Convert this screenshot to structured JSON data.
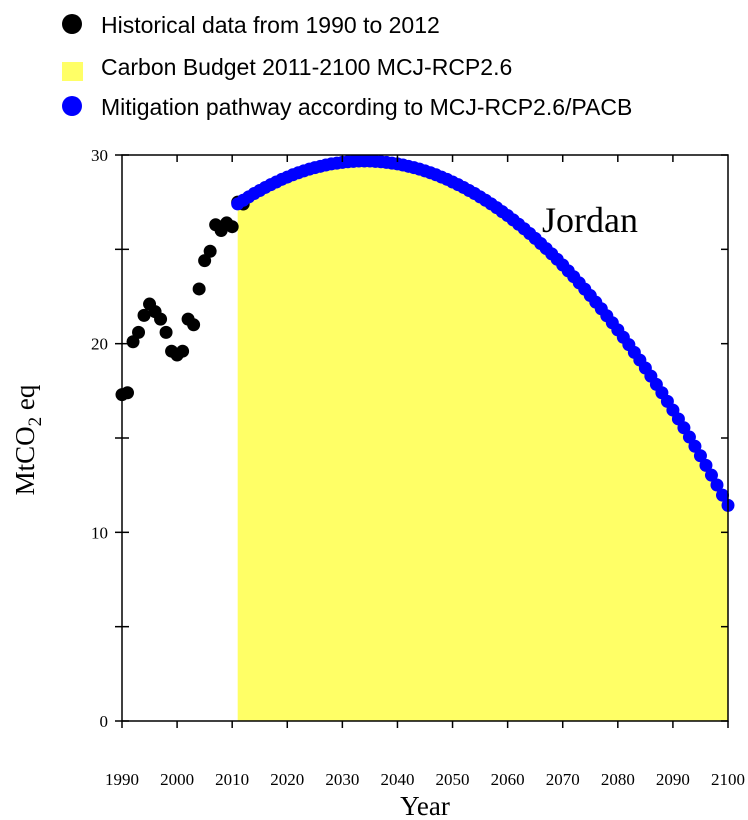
{
  "chart_data": {
    "type": "scatter",
    "annotation": "Jordan",
    "xlabel": "Year",
    "ylabel": {
      "main": "MtCO",
      "sub": "2",
      "suffix": " eq"
    },
    "xlim": [
      1990,
      2100
    ],
    "ylim": [
      0,
      30
    ],
    "xticks": [
      1990,
      2000,
      2010,
      2020,
      2030,
      2040,
      2050,
      2060,
      2070,
      2080,
      2090,
      2100
    ],
    "yticks": [
      0,
      10,
      20,
      30
    ],
    "grid": false,
    "legend_position": "top",
    "legend": [
      {
        "label": "Historical data from 1990 to 2012",
        "marker": "circle",
        "color": "#000000"
      },
      {
        "label": "Carbon Budget 2011-2100 MCJ-RCP2.6",
        "marker": "square",
        "color": "#ffff66"
      },
      {
        "label": "Mitigation pathway according to MCJ-RCP2.6/PACB",
        "marker": "circle",
        "color": "#0000ff"
      }
    ],
    "series": [
      {
        "name": "Historical data from 1990 to 2012",
        "type": "scatter",
        "color": "#000000",
        "x": [
          1990,
          1991,
          1992,
          1993,
          1994,
          1995,
          1996,
          1997,
          1998,
          1999,
          2000,
          2001,
          2002,
          2003,
          2004,
          2005,
          2006,
          2007,
          2008,
          2009,
          2010,
          2011,
          2012
        ],
        "y": [
          17.3,
          17.4,
          20.1,
          20.6,
          21.5,
          22.1,
          21.7,
          21.3,
          20.6,
          19.6,
          19.4,
          19.6,
          21.3,
          21.0,
          22.9,
          24.4,
          24.9,
          26.3,
          26.0,
          26.4,
          26.2,
          27.5,
          27.4
        ]
      },
      {
        "name": "Carbon Budget 2011-2100 MCJ-RCP2.6",
        "type": "area",
        "color": "#ffff66",
        "x_start": 2011,
        "x_end": 2100
      },
      {
        "name": "Mitigation pathway according to MCJ-RCP2.6/PACB",
        "type": "scatter",
        "color": "#0000ff",
        "x": [
          2011,
          2012,
          2013,
          2014,
          2015,
          2016,
          2017,
          2018,
          2019,
          2020,
          2021,
          2022,
          2023,
          2024,
          2025,
          2026,
          2027,
          2028,
          2029,
          2030,
          2031,
          2032,
          2033,
          2034,
          2035,
          2036,
          2037,
          2038,
          2039,
          2040,
          2041,
          2042,
          2043,
          2044,
          2045,
          2046,
          2047,
          2048,
          2049,
          2050,
          2051,
          2052,
          2053,
          2054,
          2055,
          2056,
          2057,
          2058,
          2059,
          2060,
          2061,
          2062,
          2063,
          2064,
          2065,
          2066,
          2067,
          2068,
          2069,
          2070,
          2071,
          2072,
          2073,
          2074,
          2075,
          2076,
          2077,
          2078,
          2079,
          2080,
          2081,
          2082,
          2083,
          2084,
          2085,
          2086,
          2087,
          2088,
          2089,
          2090,
          2091,
          2092,
          2093,
          2094,
          2095,
          2096,
          2097,
          2098,
          2099,
          2100
        ],
        "y": [
          27.41,
          27.6,
          27.78,
          27.96,
          28.12,
          28.28,
          28.43,
          28.57,
          28.71,
          28.83,
          28.95,
          29.06,
          29.16,
          29.25,
          29.33,
          29.4,
          29.47,
          29.53,
          29.57,
          29.61,
          29.64,
          29.66,
          29.68,
          29.68,
          29.68,
          29.66,
          29.64,
          29.61,
          29.57,
          29.53,
          29.47,
          29.4,
          29.33,
          29.25,
          29.16,
          29.06,
          28.95,
          28.83,
          28.71,
          28.57,
          28.43,
          28.28,
          28.12,
          27.96,
          27.78,
          27.6,
          27.41,
          27.21,
          27.0,
          26.79,
          26.56,
          26.33,
          26.09,
          25.84,
          25.58,
          25.31,
          25.04,
          24.76,
          24.47,
          24.17,
          23.86,
          23.55,
          23.22,
          22.89,
          22.55,
          22.2,
          21.85,
          21.48,
          21.11,
          20.73,
          20.34,
          19.95,
          19.54,
          19.13,
          18.71,
          18.28,
          17.84,
          17.4,
          16.94,
          16.48,
          16.01,
          15.54,
          15.05,
          14.56,
          14.06,
          13.55,
          13.03,
          12.51,
          11.97,
          11.43
        ]
      }
    ]
  }
}
